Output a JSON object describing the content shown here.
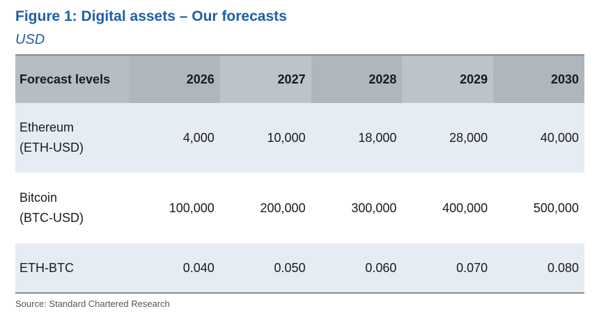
{
  "title": "Figure 1: Digital assets – Our forecasts",
  "subtitle": "USD",
  "table": {
    "header": {
      "label": "Forecast levels",
      "years": [
        "2026",
        "2027",
        "2028",
        "2029",
        "2030"
      ]
    },
    "rows": [
      {
        "label_line1": "Ethereum",
        "label_line2": "(ETH-USD)",
        "values": [
          "4,000",
          "10,000",
          "18,000",
          "28,000",
          "40,000"
        ]
      },
      {
        "label_line1": "Bitcoin",
        "label_line2": "(BTC-USD)",
        "values": [
          "100,000",
          "200,000",
          "300,000",
          "400,000",
          "500,000"
        ]
      },
      {
        "label_line1": "ETH-BTC",
        "values": [
          "0.040",
          "0.050",
          "0.060",
          "0.070",
          "0.080"
        ]
      }
    ]
  },
  "source": "Source: Standard Chartered Research"
}
